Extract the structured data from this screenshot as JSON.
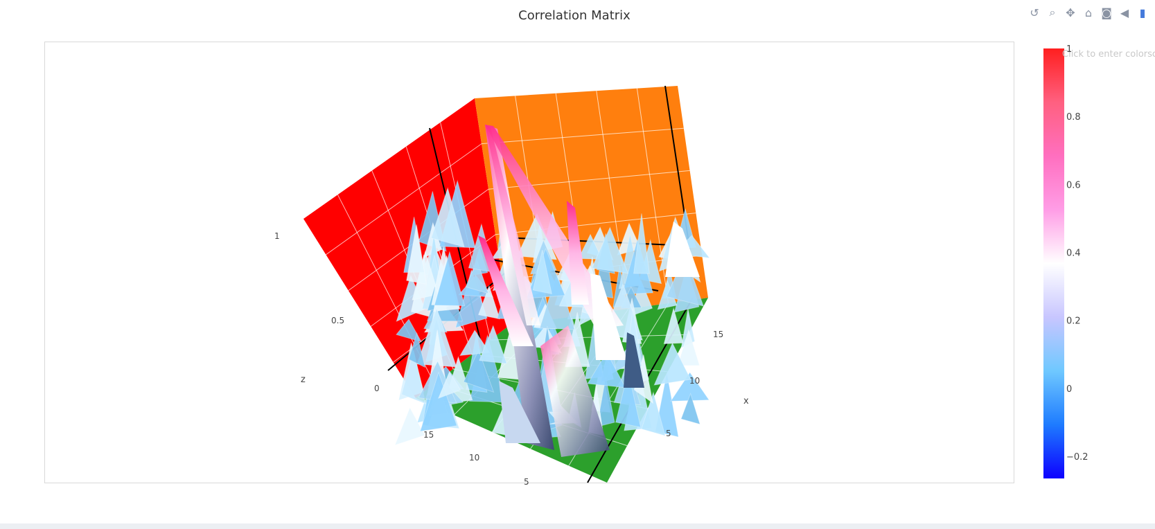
{
  "title": "Correlation Matrix",
  "modebar": {
    "items": [
      {
        "name": "reset-camera-icon",
        "glyph": "↺"
      },
      {
        "name": "zoom-icon",
        "glyph": "⌕"
      },
      {
        "name": "pan-icon",
        "glyph": "✥"
      },
      {
        "name": "home-icon",
        "glyph": "⌂"
      },
      {
        "name": "camera-icon",
        "glyph": "◙"
      },
      {
        "name": "hover-tag-icon",
        "glyph": "◀"
      },
      {
        "name": "plotly-logo-icon",
        "glyph": "▮"
      }
    ]
  },
  "colorbar": {
    "title_placeholder": "Click to enter colorscale title",
    "ticks": [
      "1",
      "0.8",
      "0.6",
      "0.4",
      "0.2",
      "0",
      "−0.2"
    ],
    "tick_values": [
      1,
      0.8,
      0.6,
      0.4,
      0.2,
      0,
      -0.2
    ],
    "range": [
      -0.265,
      1
    ],
    "colorscale": [
      "#0d00ff",
      "#1e7bff",
      "#6fc8ff",
      "#c8c6ff",
      "#ffffff",
      "#ff9de6",
      "#ff6fbf",
      "#ff6080",
      "#ff1f1f"
    ]
  },
  "chart_data": {
    "type": "surface",
    "title": "Correlation Matrix",
    "xlabel": "x",
    "ylabel": "",
    "zlabel": "z",
    "x_ticks": [
      "5",
      "10",
      "15"
    ],
    "y_ticks": [
      "5",
      "10",
      "15"
    ],
    "z_ticks": [
      "0",
      "0.5",
      "1"
    ],
    "zlim": [
      -0.265,
      1
    ],
    "wall_colors": {
      "z_wall": "#ff0000",
      "back_wall": "#ff7f0e",
      "floor": "#2ca02c"
    }
  }
}
